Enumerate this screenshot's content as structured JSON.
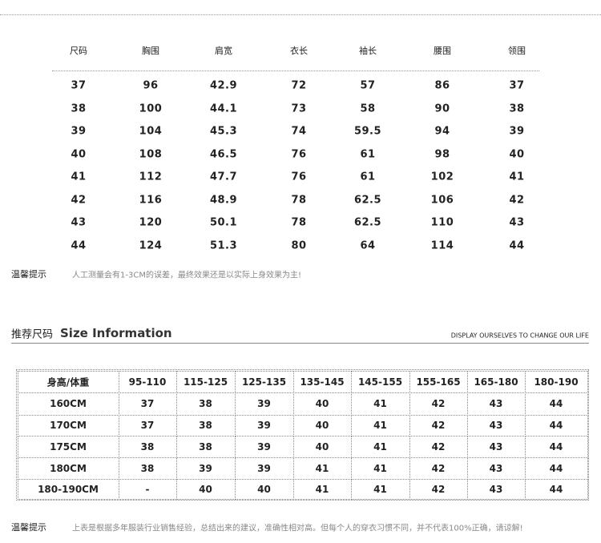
{
  "size_table": {
    "header": [
      "尺码",
      "胸围",
      "肩宽",
      "衣长",
      "袖长",
      "腰围",
      "领围"
    ],
    "rows": [
      [
        "37",
        "96",
        "42.9",
        "72",
        "57",
        "86",
        "37"
      ],
      [
        "38",
        "100",
        "44.1",
        "73",
        "58",
        "90",
        "38"
      ],
      [
        "39",
        "104",
        "45.3",
        "74",
        "59.5",
        "94",
        "39"
      ],
      [
        "40",
        "108",
        "46.5",
        "76",
        "61",
        "98",
        "40"
      ],
      [
        "41",
        "112",
        "47.7",
        "76",
        "61",
        "102",
        "41"
      ],
      [
        "42",
        "116",
        "48.9",
        "78",
        "62.5",
        "106",
        "42"
      ],
      [
        "43",
        "120",
        "50.1",
        "78",
        "62.5",
        "110",
        "43"
      ],
      [
        "44",
        "124",
        "51.3",
        "80",
        "64",
        "114",
        "44"
      ]
    ]
  },
  "note1": {
    "label": "温馨提示",
    "text": "人工测量会有1-3CM的误差，最终效果还是以实际上身效果为主!"
  },
  "section": {
    "title_cn": "推荐尺码",
    "title_en": "Size Information",
    "slogan": "DISPLAY OURSELVES TO CHANGE OUR LIFE"
  },
  "recommend_table": {
    "header": [
      "身高/体重",
      "95-110",
      "115-125",
      "125-135",
      "135-145",
      "145-155",
      "155-165",
      "165-180",
      "180-190"
    ],
    "rows": [
      [
        "160CM",
        "37",
        "38",
        "39",
        "40",
        "41",
        "42",
        "43",
        "44"
      ],
      [
        "170CM",
        "37",
        "38",
        "39",
        "40",
        "41",
        "42",
        "43",
        "44"
      ],
      [
        "175CM",
        "38",
        "38",
        "39",
        "40",
        "41",
        "42",
        "43",
        "44"
      ],
      [
        "180CM",
        "38",
        "39",
        "39",
        "41",
        "41",
        "42",
        "43",
        "44"
      ],
      [
        "180-190CM",
        "-",
        "40",
        "40",
        "41",
        "41",
        "42",
        "43",
        "44"
      ]
    ]
  },
  "note2": {
    "label": "温馨提示",
    "text": "上表是根据多年服装行业销售经验，总结出来的建议，准确性相对高。但每个人的穿衣习惯不同，并不代表100%正确，请谅解!"
  }
}
